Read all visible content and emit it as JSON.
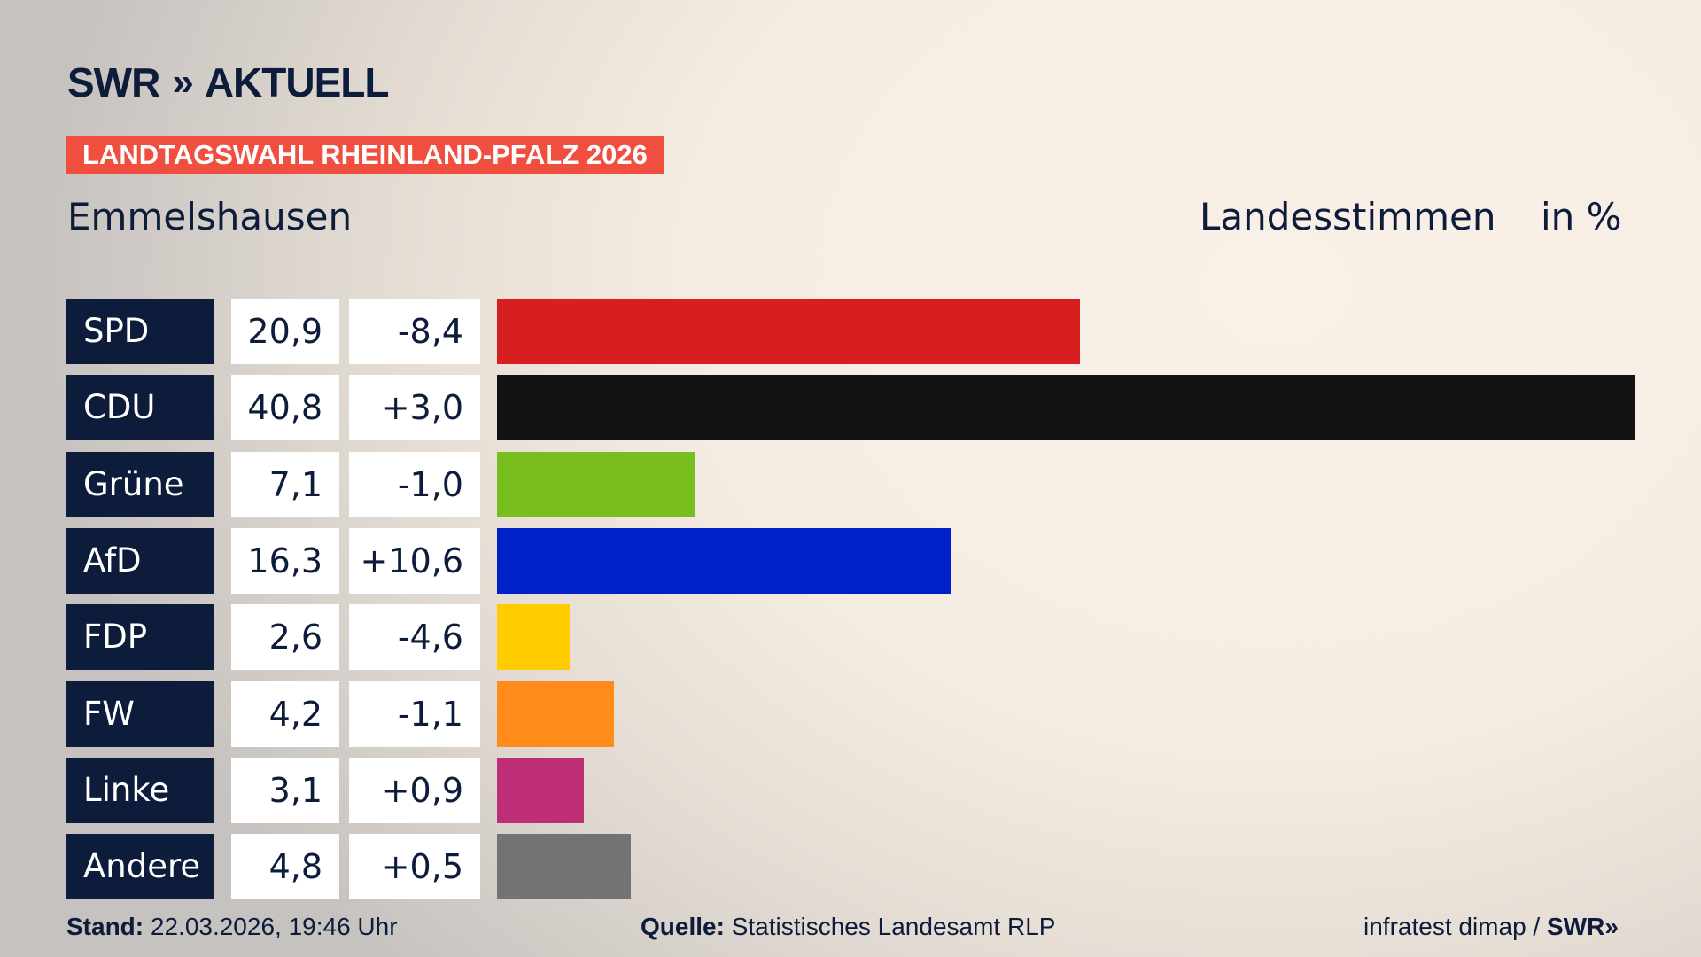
{
  "header": {
    "logo_text": "SWR",
    "logo_suffix": "AKTUELL",
    "badge": "LANDTAGSWAHL RHEINLAND-PFALZ 2026",
    "place": "Emmelshausen",
    "vote_type": "Landesstimmen",
    "unit": "in %"
  },
  "chart_data": {
    "type": "bar",
    "orientation": "horizontal",
    "categories": [
      "SPD",
      "CDU",
      "Grüne",
      "AfD",
      "FDP",
      "FW",
      "Linke",
      "Andere"
    ],
    "values": [
      "20,9",
      "40,8",
      "7,1",
      "16,3",
      "2,6",
      "4,2",
      "3,1",
      "4,8"
    ],
    "diffs": [
      "-8,4",
      "+3,0",
      "-1,0",
      "+10,6",
      "-4,6",
      "-1,1",
      "+0,9",
      "+0,5"
    ],
    "numeric_values": [
      20.9,
      40.8,
      7.1,
      16.3,
      2.6,
      4.2,
      3.1,
      4.8
    ],
    "colors": [
      "#d71f1f",
      "#121212",
      "#78be1e",
      "#0020c8",
      "#ffcc00",
      "#ff8c1a",
      "#be2e77",
      "#737373"
    ],
    "xlim": [
      0,
      40.8
    ],
    "grid": false
  },
  "footer": {
    "stand_label": "Stand:",
    "stand_value": "22.03.2026, 19:46 Uhr",
    "source_label": "Quelle:",
    "source_value": "Statistisches Landesamt RLP",
    "credit": "infratest dimap /",
    "credit_logo": "SWR"
  }
}
